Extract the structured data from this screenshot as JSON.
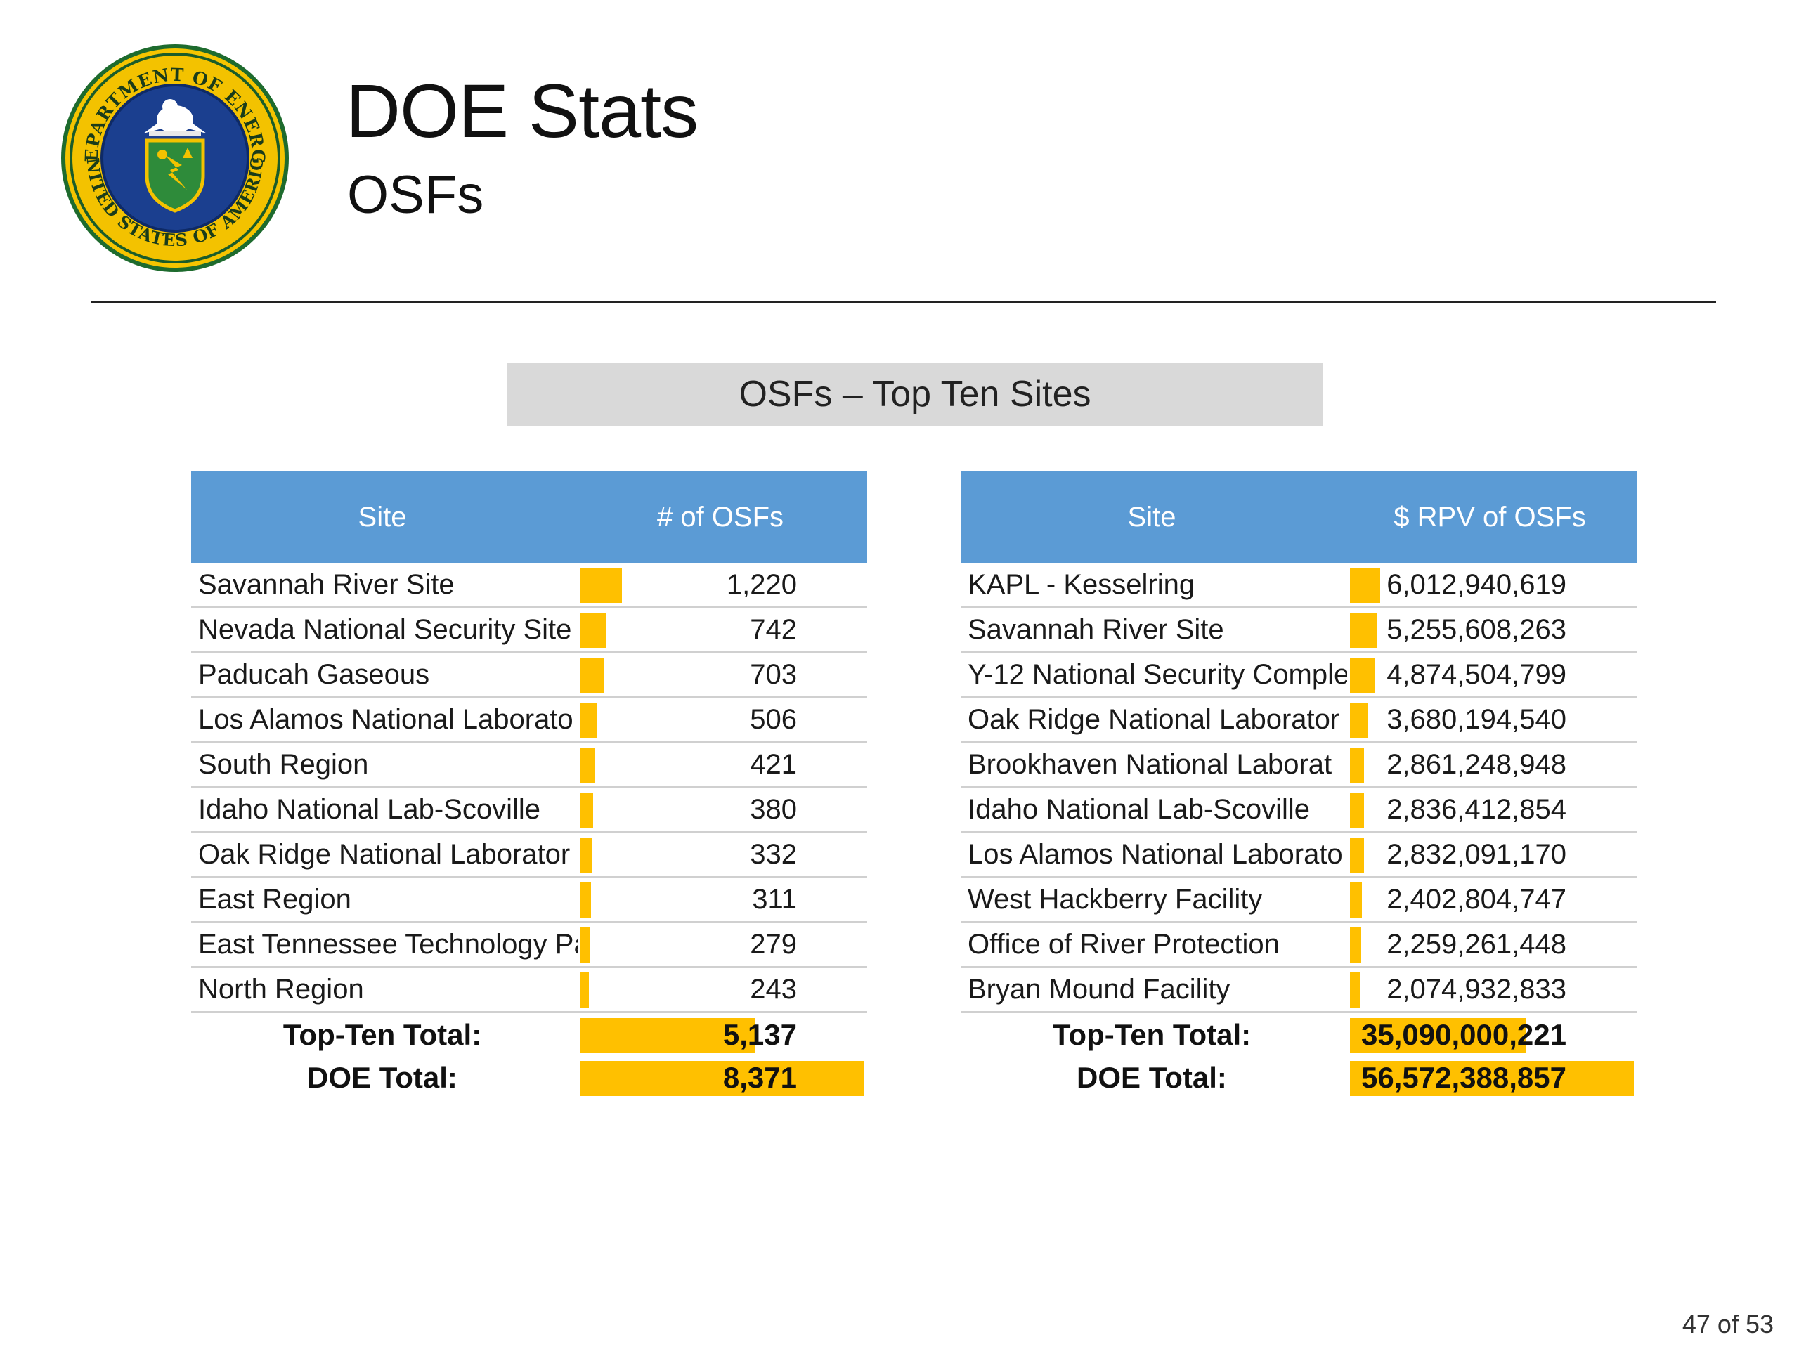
{
  "header": {
    "title": "DOE Stats",
    "subtitle": "OSFs",
    "seal_text_top": "DEPARTMENT OF ENERGY",
    "seal_text_bottom": "UNITED STATES OF AMERICA"
  },
  "banner": "OSFs – Top Ten Sites",
  "left_table": {
    "headers": [
      "Site",
      "# of OSFs"
    ],
    "rows": [
      {
        "site": "Savannah River Site",
        "value": "1,220",
        "bar": 0.1457
      },
      {
        "site": "Nevada National Security Site",
        "value": "742",
        "bar": 0.0886
      },
      {
        "site": "Paducah Gaseous",
        "value": "703",
        "bar": 0.084
      },
      {
        "site": "Los Alamos National Laborato",
        "value": "506",
        "bar": 0.0604
      },
      {
        "site": "South Region",
        "value": "421",
        "bar": 0.0503
      },
      {
        "site": "Idaho National Lab-Scoville",
        "value": "380",
        "bar": 0.0454
      },
      {
        "site": "Oak Ridge National Laborator",
        "value": "332",
        "bar": 0.0397
      },
      {
        "site": "East Region",
        "value": "311",
        "bar": 0.0372
      },
      {
        "site": "East Tennessee Technology Pa",
        "value": "279",
        "bar": 0.0333
      },
      {
        "site": "North Region",
        "value": "243",
        "bar": 0.029
      }
    ],
    "totals": [
      {
        "label": "Top-Ten Total:",
        "value": "5,137",
        "bar": 0.6137
      },
      {
        "label": "DOE Total:",
        "value": "8,371",
        "bar": 1.0
      }
    ]
  },
  "right_table": {
    "headers": [
      "Site",
      "$ RPV of OSFs"
    ],
    "rows": [
      {
        "site": "KAPL - Kesselring",
        "value": "6,012,940,619",
        "bar": 0.1063
      },
      {
        "site": "Savannah River Site",
        "value": "5,255,608,263",
        "bar": 0.0929
      },
      {
        "site": "Y-12 National Security Comple",
        "value": "4,874,504,799",
        "bar": 0.0862
      },
      {
        "site": "Oak Ridge National Laborator",
        "value": "3,680,194,540",
        "bar": 0.0651
      },
      {
        "site": "Brookhaven National Laborat",
        "value": "2,861,248,948",
        "bar": 0.0506
      },
      {
        "site": "Idaho National Lab-Scoville",
        "value": "2,836,412,854",
        "bar": 0.0501
      },
      {
        "site": "Los Alamos National Laborato",
        "value": "2,832,091,170",
        "bar": 0.0501
      },
      {
        "site": "West Hackberry Facility",
        "value": "2,402,804,747",
        "bar": 0.0425
      },
      {
        "site": "Office of River Protection",
        "value": "2,259,261,448",
        "bar": 0.0399
      },
      {
        "site": "Bryan Mound Facility",
        "value": "2,074,932,833",
        "bar": 0.0367
      }
    ],
    "totals": [
      {
        "label": "Top-Ten Total:",
        "value": "35,090,000,221",
        "bar": 0.6203
      },
      {
        "label": "DOE Total:",
        "value": "56,572,388,857",
        "bar": 1.0
      }
    ]
  },
  "page_number": "47 of 53",
  "colors": {
    "header_blue": "#5b9bd5",
    "bar_gold": "#ffc000",
    "banner_gray": "#d9d9d9"
  }
}
